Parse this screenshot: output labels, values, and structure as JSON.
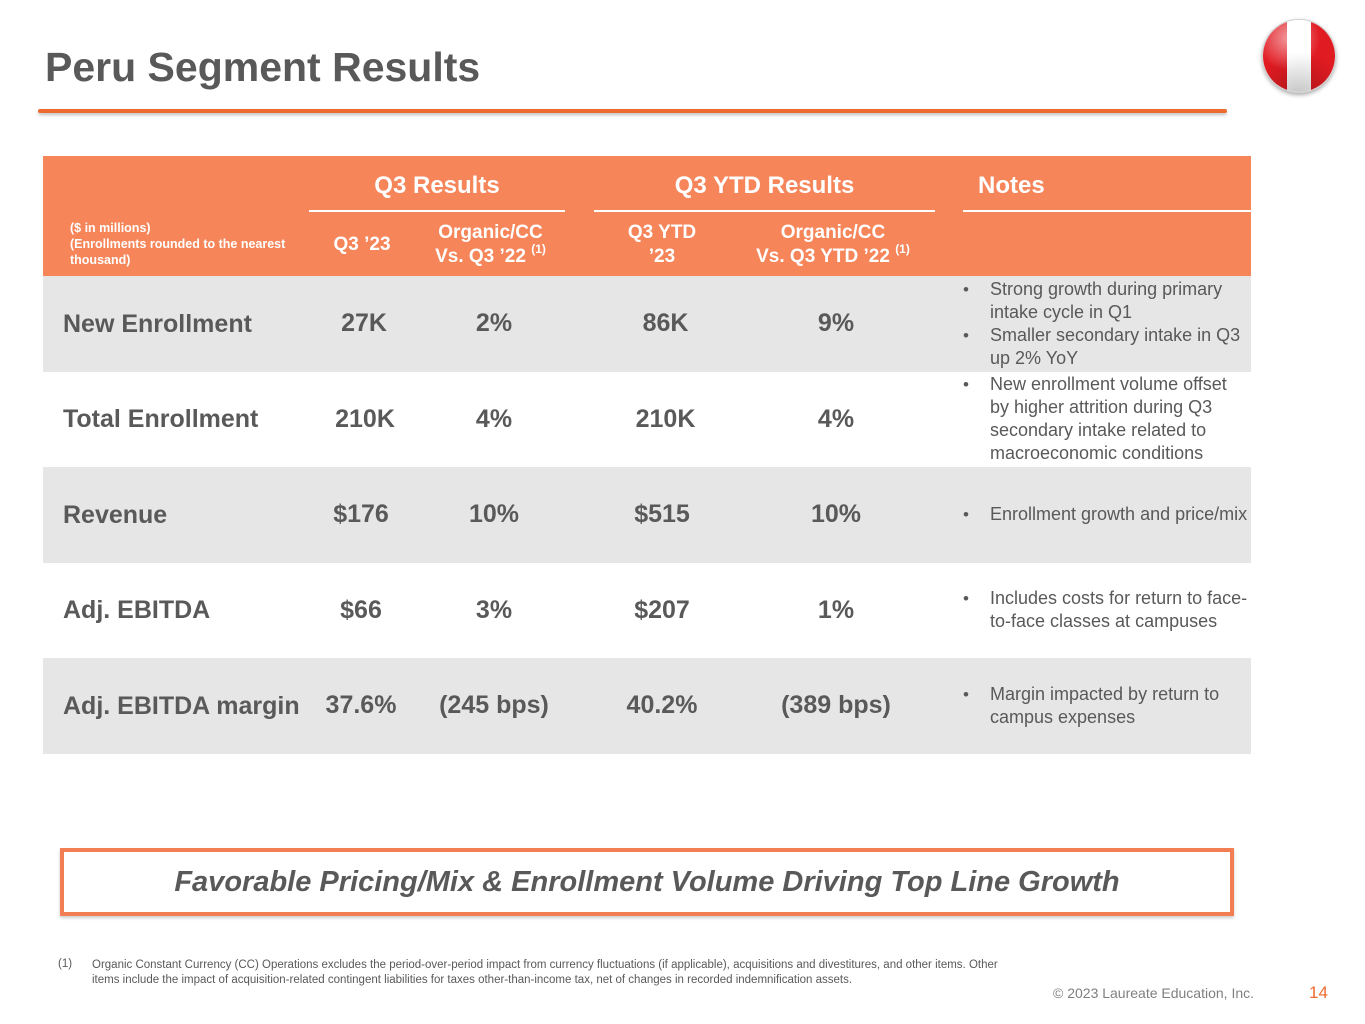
{
  "page": {
    "title": "Peru Segment Results",
    "banner": "Favorable Pricing/Mix & Enrollment Volume Driving Top Line Growth",
    "footnote_marker": "(1)",
    "footnote": "Organic Constant Currency (CC) Operations excludes the period-over-period impact from currency fluctuations (if applicable), acquisitions and divestitures, and other items. Other items include the impact of acquisition-related contingent liabilities for taxes other-than-income tax, net of changes in recorded indemnification assets.",
    "copyright": "© 2023 Laureate Education, Inc.",
    "page_number": "14"
  },
  "flag": {
    "name": "Peru flag",
    "colors": [
      "#e11b22",
      "#ffffff",
      "#e11b22"
    ]
  },
  "table": {
    "units_line1": "($ in millions)",
    "units_line2": "(Enrollments rounded to the nearest thousand)",
    "groups": {
      "q3": "Q3 Results",
      "ytd": "Q3 YTD Results",
      "notes": "Notes"
    },
    "columns": {
      "q3": "Q3 ’23",
      "q3_organic_l1": "Organic/CC",
      "q3_organic_l2": "Vs. Q3 ’22",
      "ytd_l1": "Q3 YTD",
      "ytd_l2": "’23",
      "ytd_organic_l1": "Organic/CC",
      "ytd_organic_l2": "Vs. Q3 YTD ’22",
      "footnote_ref": "(1)"
    },
    "rows": [
      {
        "metric": "New Enrollment",
        "q3": "27K",
        "q3_organic": "2%",
        "ytd": "86K",
        "ytd_organic": "9%",
        "notes": [
          "Strong growth during primary intake cycle in Q1",
          "Smaller secondary intake in Q3 up 2% YoY"
        ]
      },
      {
        "metric": "Total Enrollment",
        "q3": "210K",
        "q3_organic": "4%",
        "ytd": "210K",
        "ytd_organic": "4%",
        "notes": [
          "New enrollment volume offset by higher attrition during Q3 secondary intake related to macroeconomic conditions"
        ]
      },
      {
        "metric": "Revenue",
        "q3": "$176",
        "q3_organic": "10%",
        "ytd": "$515",
        "ytd_organic": "10%",
        "notes": [
          "Enrollment growth and price/mix"
        ]
      },
      {
        "metric": "Adj. EBITDA",
        "q3": "$66",
        "q3_organic": "3%",
        "ytd": "$207",
        "ytd_organic": "1%",
        "notes": [
          "Includes costs for return to face-to-face classes at campuses"
        ]
      },
      {
        "metric": "Adj. EBITDA margin",
        "q3": "37.6%",
        "q3_organic": "(245 bps)",
        "ytd": "40.2%",
        "ytd_organic": "(389 bps)",
        "notes": [
          "Margin impacted by return to campus expenses"
        ]
      }
    ]
  }
}
